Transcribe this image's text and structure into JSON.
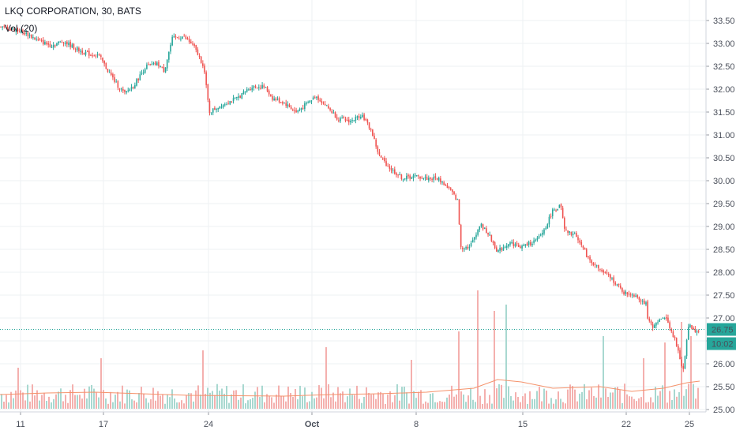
{
  "header": {
    "title": "LKQ CORPORATION, 30, BATS",
    "indicator": "Vol (20)"
  },
  "colors": {
    "up": "#26a69a",
    "down": "#ef5350",
    "volume_up": "#a8d8d0",
    "volume_down": "#f4b0ae",
    "volume_ma": "#f5926b",
    "last_price_line": "#26a69a",
    "grid": "#eef0f3"
  },
  "chart_data": {
    "type": "candlestick",
    "title": "LKQ CORPORATION, 30, BATS",
    "y_ticks": [
      "25.00",
      "25.50",
      "26.00",
      "26.50",
      "27.00",
      "27.50",
      "28.00",
      "28.50",
      "29.00",
      "29.50",
      "30.00",
      "30.50",
      "31.00",
      "31.50",
      "32.00",
      "32.50",
      "33.00",
      "33.50"
    ],
    "ylim": [
      25.0,
      33.5
    ],
    "x_ticks": [
      "11",
      "17",
      "24",
      "Oct",
      "8",
      "15",
      "22",
      "25"
    ],
    "last_price": "26.75",
    "countdown": "10:02",
    "close_anchors": [
      [
        0,
        33.35
      ],
      [
        20,
        33.3
      ],
      [
        35,
        33.2
      ],
      [
        50,
        33.05
      ],
      [
        65,
        32.95
      ],
      [
        80,
        33.05
      ],
      [
        100,
        32.85
      ],
      [
        115,
        32.75
      ],
      [
        125,
        32.75
      ],
      [
        135,
        32.45
      ],
      [
        148,
        32.1
      ],
      [
        158,
        31.9
      ],
      [
        170,
        32.1
      ],
      [
        185,
        32.5
      ],
      [
        200,
        32.55
      ],
      [
        208,
        32.4
      ],
      [
        218,
        33.1
      ],
      [
        232,
        33.15
      ],
      [
        245,
        32.95
      ],
      [
        258,
        32.5
      ],
      [
        265,
        31.5
      ],
      [
        280,
        31.65
      ],
      [
        300,
        31.8
      ],
      [
        318,
        32.05
      ],
      [
        335,
        32.05
      ],
      [
        345,
        31.8
      ],
      [
        360,
        31.7
      ],
      [
        375,
        31.5
      ],
      [
        390,
        31.7
      ],
      [
        400,
        31.85
      ],
      [
        418,
        31.55
      ],
      [
        428,
        31.35
      ],
      [
        445,
        31.3
      ],
      [
        458,
        31.45
      ],
      [
        470,
        31.1
      ],
      [
        480,
        30.55
      ],
      [
        495,
        30.25
      ],
      [
        510,
        30.05
      ],
      [
        525,
        30.1
      ],
      [
        540,
        30.05
      ],
      [
        555,
        30.05
      ],
      [
        570,
        29.8
      ],
      [
        580,
        29.55
      ],
      [
        583,
        28.55
      ],
      [
        595,
        28.55
      ],
      [
        608,
        29.05
      ],
      [
        618,
        28.85
      ],
      [
        630,
        28.45
      ],
      [
        645,
        28.65
      ],
      [
        660,
        28.55
      ],
      [
        680,
        28.7
      ],
      [
        690,
        28.95
      ],
      [
        700,
        29.35
      ],
      [
        710,
        29.45
      ],
      [
        715,
        28.9
      ],
      [
        730,
        28.8
      ],
      [
        745,
        28.3
      ],
      [
        760,
        28.05
      ],
      [
        775,
        27.85
      ],
      [
        790,
        27.55
      ],
      [
        805,
        27.5
      ],
      [
        818,
        27.3
      ],
      [
        820,
        26.95
      ],
      [
        828,
        26.8
      ],
      [
        840,
        27.05
      ],
      [
        845,
        26.95
      ],
      [
        855,
        26.5
      ],
      [
        865,
        25.85
      ],
      [
        872,
        26.85
      ],
      [
        882,
        26.7
      ],
      [
        886,
        26.75
      ]
    ],
    "volume_ma": [
      [
        0,
        36
      ],
      [
        60,
        40
      ],
      [
        120,
        42
      ],
      [
        180,
        38
      ],
      [
        240,
        34
      ],
      [
        300,
        33
      ],
      [
        360,
        32
      ],
      [
        420,
        36
      ],
      [
        480,
        38
      ],
      [
        540,
        42
      ],
      [
        600,
        52
      ],
      [
        630,
        74
      ],
      [
        660,
        68
      ],
      [
        700,
        52
      ],
      [
        760,
        56
      ],
      [
        800,
        44
      ],
      [
        840,
        52
      ],
      [
        870,
        66
      ],
      [
        886,
        70
      ]
    ],
    "volume_spikes": [
      [
        22,
        52
      ],
      [
        128,
        64
      ],
      [
        258,
        74
      ],
      [
        412,
        78
      ],
      [
        522,
        62
      ],
      [
        580,
        98
      ],
      [
        604,
        150
      ],
      [
        626,
        124
      ],
      [
        642,
        132
      ],
      [
        765,
        92
      ],
      [
        816,
        64
      ],
      [
        843,
        84
      ],
      [
        862,
        110
      ],
      [
        875,
        92
      ]
    ]
  }
}
